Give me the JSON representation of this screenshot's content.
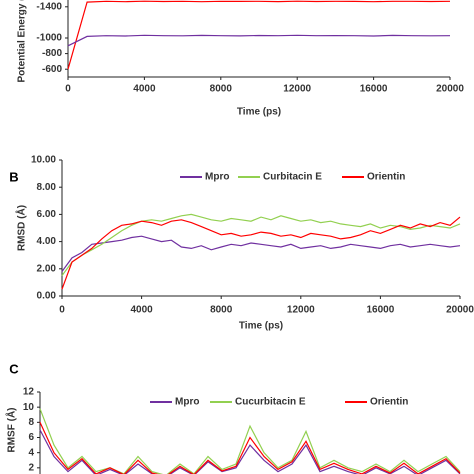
{
  "chart_data": [
    {
      "type": "line",
      "ylabel": "Potential Energy (",
      "xlabel": "Time (ps)",
      "x": [
        0,
        1000,
        2000,
        3000,
        4000,
        5000,
        6000,
        7000,
        8000,
        9000,
        10000,
        11000,
        12000,
        13000,
        14000,
        15000,
        16000,
        17000,
        18000,
        19000,
        20000
      ],
      "series": [
        {
          "name": null,
          "color": "#ff0000",
          "values": [
            -600,
            -1460,
            -1470,
            -1465,
            -1472,
            -1468,
            -1470,
            -1466,
            -1471,
            -1469,
            -1470,
            -1467,
            -1472,
            -1468,
            -1470,
            -1469,
            -1466,
            -1471,
            -1470,
            -1468,
            -1470
          ]
        },
        {
          "name": null,
          "color": "#7030a0",
          "values": [
            -900,
            -1020,
            -1030,
            -1025,
            -1035,
            -1030,
            -1028,
            -1033,
            -1030,
            -1027,
            -1032,
            -1030,
            -1035,
            -1029,
            -1031,
            -1030,
            -1026,
            -1033,
            -1030,
            -1028,
            -1030
          ]
        }
      ],
      "xlim": [
        0,
        20000
      ],
      "xticks": [
        0,
        4000,
        8000,
        12000,
        16000,
        20000
      ],
      "ylim": [
        -500,
        -1500
      ],
      "yticks": [
        -1400,
        -1000,
        -800,
        -600
      ]
    },
    {
      "type": "line",
      "panel_label": "B",
      "ylabel": "RMSD (Å)",
      "xlabel": "Time (ps)",
      "x": [
        0,
        500,
        1000,
        1500,
        2000,
        2500,
        3000,
        3500,
        4000,
        4500,
        5000,
        5500,
        6000,
        6500,
        7000,
        7500,
        8000,
        8500,
        9000,
        9500,
        10000,
        10500,
        11000,
        11500,
        12000,
        12500,
        13000,
        13500,
        14000,
        14500,
        15000,
        15500,
        16000,
        16500,
        17000,
        17500,
        18000,
        18500,
        19000,
        19500,
        20000
      ],
      "series": [
        {
          "name": "Mpro",
          "color": "#7030a0",
          "values": [
            1.8,
            2.8,
            3.2,
            3.8,
            3.9,
            4.0,
            4.1,
            4.3,
            4.4,
            4.2,
            4.0,
            4.1,
            3.6,
            3.5,
            3.7,
            3.4,
            3.6,
            3.8,
            3.7,
            3.9,
            3.8,
            3.7,
            3.6,
            3.8,
            3.5,
            3.6,
            3.7,
            3.5,
            3.6,
            3.8,
            3.7,
            3.6,
            3.5,
            3.7,
            3.8,
            3.6,
            3.7,
            3.8,
            3.7,
            3.6,
            3.7
          ]
        },
        {
          "name": "Curbitacin E",
          "color": "#92d050",
          "values": [
            1.5,
            2.5,
            3.0,
            3.4,
            3.8,
            4.3,
            4.8,
            5.2,
            5.5,
            5.6,
            5.5,
            5.7,
            5.9,
            6.0,
            5.8,
            5.6,
            5.5,
            5.7,
            5.6,
            5.5,
            5.8,
            5.6,
            5.9,
            5.7,
            5.5,
            5.6,
            5.4,
            5.5,
            5.3,
            5.2,
            5.1,
            5.3,
            5.0,
            5.2,
            5.1,
            4.9,
            5.0,
            5.2,
            5.1,
            5.0,
            5.3
          ]
        },
        {
          "name": "Orientin",
          "color": "#ff0000",
          "values": [
            0.5,
            2.5,
            3.0,
            3.5,
            4.2,
            4.8,
            5.2,
            5.3,
            5.5,
            5.4,
            5.2,
            5.5,
            5.6,
            5.4,
            5.1,
            4.8,
            4.5,
            4.6,
            4.4,
            4.5,
            4.7,
            4.6,
            4.4,
            4.5,
            4.3,
            4.6,
            4.5,
            4.4,
            4.2,
            4.3,
            4.5,
            4.8,
            4.6,
            4.9,
            5.2,
            5.0,
            5.3,
            5.1,
            5.4,
            5.2,
            5.8
          ]
        }
      ],
      "xlim": [
        0,
        20000
      ],
      "xticks": [
        0,
        4000,
        8000,
        12000,
        16000,
        20000
      ],
      "ylim": [
        0,
        10
      ],
      "yticks": [
        {
          "value": 0,
          "label": "0.00"
        },
        {
          "value": 2,
          "label": "2.00"
        },
        {
          "value": 4,
          "label": "4.00"
        },
        {
          "value": 6,
          "label": "6.00"
        },
        {
          "value": 8,
          "label": "8.00"
        },
        {
          "value": 10,
          "label": "10.00"
        }
      ]
    },
    {
      "type": "line",
      "panel_label": "C",
      "ylabel": "RMSF (Å)",
      "x": [
        0,
        10,
        20,
        30,
        40,
        50,
        60,
        70,
        80,
        90,
        100,
        110,
        120,
        130,
        140,
        150,
        160,
        170,
        180,
        190,
        200,
        210,
        220,
        230,
        240,
        250,
        260,
        270,
        280,
        290,
        300
      ],
      "series": [
        {
          "name": "Mpro",
          "color": "#7030a0",
          "values": [
            7.0,
            3.5,
            1.5,
            3.0,
            1.0,
            1.8,
            1.0,
            2.5,
            1.2,
            0.8,
            2.0,
            1.0,
            2.8,
            1.5,
            2.0,
            5.0,
            3.0,
            1.5,
            2.5,
            5.0,
            1.5,
            2.2,
            1.5,
            1.0,
            2.0,
            1.2,
            2.2,
            1.0,
            2.0,
            3.0,
            1.2
          ]
        },
        {
          "name": "Cucurbitacin E",
          "color": "#92d050",
          "values": [
            9.8,
            5.0,
            2.0,
            3.5,
            1.5,
            2.0,
            1.2,
            3.5,
            1.5,
            1.0,
            2.5,
            1.2,
            3.5,
            1.8,
            2.5,
            7.5,
            4.0,
            2.0,
            3.0,
            6.8,
            2.0,
            3.0,
            2.0,
            1.5,
            2.5,
            1.5,
            3.0,
            1.5,
            2.5,
            3.5,
            1.5
          ]
        },
        {
          "name": "Orientin",
          "color": "#ff0000",
          "values": [
            8.0,
            4.0,
            1.8,
            3.2,
            1.2,
            2.0,
            1.1,
            3.0,
            1.3,
            0.9,
            2.2,
            1.1,
            3.0,
            1.6,
            2.2,
            6.0,
            3.5,
            1.8,
            2.8,
            5.5,
            1.8,
            2.6,
            1.8,
            1.2,
            2.2,
            1.3,
            2.6,
            1.2,
            2.2,
            3.2,
            1.3
          ]
        }
      ],
      "xlim": [
        0,
        300
      ],
      "ylim": [
        0,
        12
      ],
      "yticks": [
        2,
        4,
        6,
        8,
        10,
        12
      ]
    }
  ]
}
